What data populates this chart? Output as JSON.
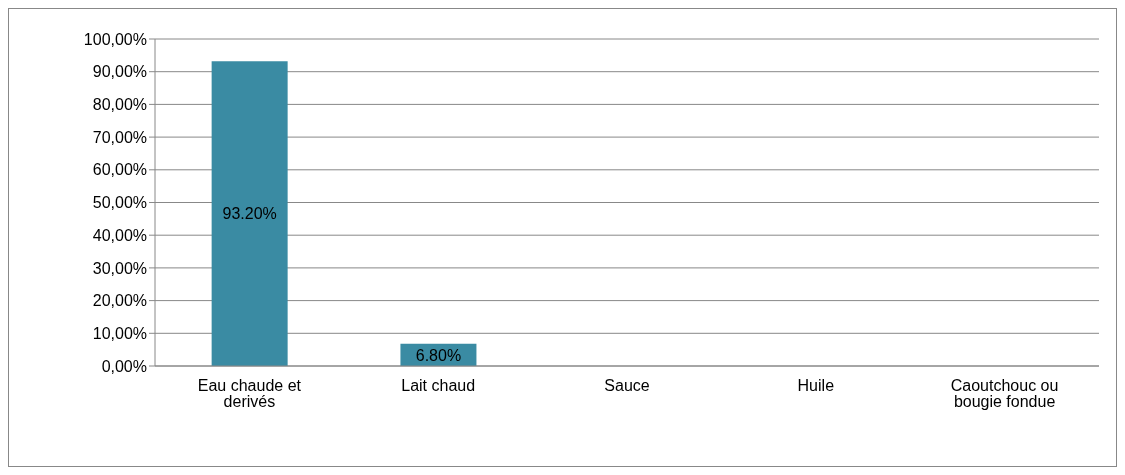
{
  "chart_data": {
    "type": "bar",
    "categories": [
      "Eau chaude et derivés",
      "Lait chaud",
      "Sauce",
      "Huile",
      "Caoutchouc ou bougie fondue"
    ],
    "values": [
      93.2,
      6.8,
      0,
      0,
      0
    ],
    "value_labels": [
      "93.20%",
      "6.80%",
      null,
      null,
      null
    ],
    "color": "#3a8ba3",
    "ylim": [
      0,
      100
    ],
    "yticks": [
      {
        "value": 0,
        "label": "0,00%"
      },
      {
        "value": 10,
        "label": "10,00%"
      },
      {
        "value": 20,
        "label": "20,00%"
      },
      {
        "value": 30,
        "label": "30,00%"
      },
      {
        "value": 40,
        "label": "40,00%"
      },
      {
        "value": 50,
        "label": "50,00%"
      },
      {
        "value": 60,
        "label": "60,00%"
      },
      {
        "value": 70,
        "label": "70,00%"
      },
      {
        "value": 80,
        "label": "80,00%"
      },
      {
        "value": 90,
        "label": "90,00%"
      },
      {
        "value": 100,
        "label": "100,00%"
      }
    ],
    "grid": "y",
    "legend": false
  }
}
